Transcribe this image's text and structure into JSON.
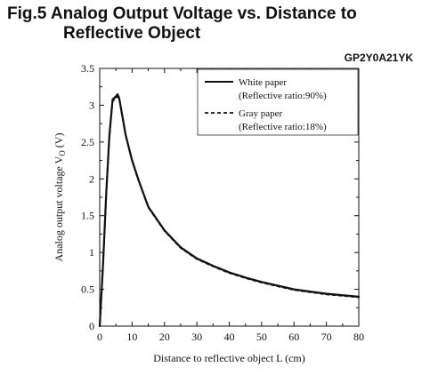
{
  "header": {
    "title_line1": "Fig.5 Analog Output Voltage vs. Distance to",
    "title_line2": "Reflective Object",
    "part_number": "GP2Y0A21YK"
  },
  "chart_data": {
    "type": "line",
    "xlabel": "Distance to reflective object L (cm)",
    "ylabel": "Analog output voltage V",
    "ylabel_sub": "O",
    "ylabel_unit": " (V)",
    "xlim": [
      0,
      80
    ],
    "ylim": [
      0,
      3.5
    ],
    "xticks": [
      "0",
      "10",
      "20",
      "30",
      "40",
      "50",
      "60",
      "70",
      "80"
    ],
    "yticks": [
      "0",
      "0.5",
      "1",
      "1.5",
      "2",
      "2.5",
      "3",
      "3.5"
    ],
    "legend_position": "top-right",
    "series": [
      {
        "name": "White paper",
        "note": "(Reflective ratio:90%)",
        "style": "solid",
        "x": [
          0,
          1,
          2,
          3,
          4,
          5,
          5.5,
          6,
          7,
          8,
          10,
          12,
          15,
          20,
          25,
          30,
          35,
          40,
          45,
          50,
          55,
          60,
          65,
          70,
          75,
          80
        ],
        "y": [
          0,
          0.8,
          1.8,
          2.6,
          3.08,
          3.12,
          3.15,
          3.1,
          2.85,
          2.6,
          2.25,
          1.98,
          1.62,
          1.3,
          1.07,
          0.92,
          0.82,
          0.73,
          0.66,
          0.6,
          0.55,
          0.5,
          0.47,
          0.44,
          0.42,
          0.4
        ]
      },
      {
        "name": "Gray paper",
        "note": "(Reflective ratio:18%)",
        "style": "dashed",
        "x": [
          0,
          1,
          2,
          3,
          4,
          5,
          5.5,
          6,
          7,
          8,
          10,
          12,
          15,
          20,
          25,
          30,
          35,
          40,
          45,
          50,
          55,
          60,
          65,
          70,
          75,
          80
        ],
        "y": [
          0,
          0.78,
          1.75,
          2.55,
          3.05,
          3.1,
          3.12,
          3.08,
          2.83,
          2.58,
          2.24,
          1.97,
          1.61,
          1.29,
          1.06,
          0.91,
          0.81,
          0.72,
          0.65,
          0.59,
          0.54,
          0.49,
          0.46,
          0.43,
          0.41,
          0.39
        ]
      }
    ]
  }
}
